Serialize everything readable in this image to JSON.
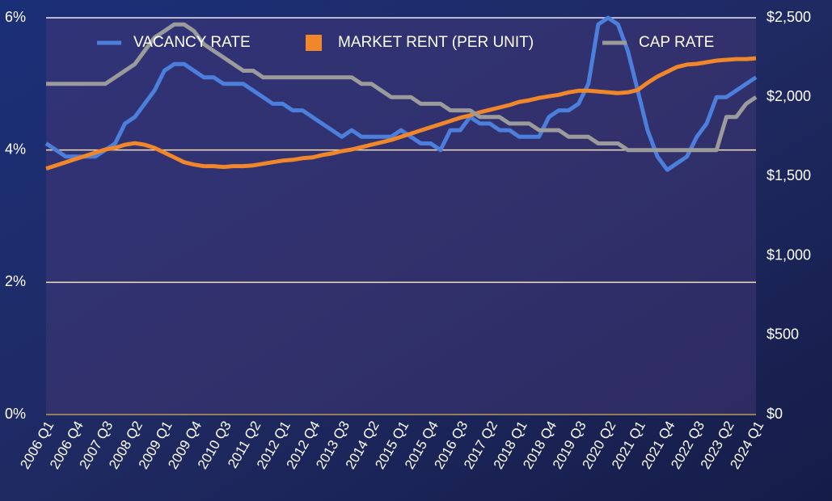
{
  "chart_data": {
    "type": "line",
    "categories": [
      "2006 Q1",
      null,
      null,
      "2006 Q4",
      null,
      null,
      "2007 Q3",
      null,
      null,
      "2008 Q2",
      null,
      null,
      "2009 Q1",
      null,
      null,
      "2009 Q4",
      null,
      null,
      "2010 Q3",
      null,
      null,
      "2011 Q2",
      null,
      null,
      "2012 Q1",
      null,
      null,
      "2012 Q4",
      null,
      null,
      "2013 Q3",
      null,
      null,
      "2014 Q2",
      null,
      null,
      "2015 Q1",
      null,
      null,
      "2015 Q4",
      null,
      null,
      "2016 Q3",
      null,
      null,
      "2017 Q2",
      null,
      null,
      "2018 Q1",
      null,
      null,
      "2018 Q4",
      null,
      null,
      "2019 Q3",
      null,
      null,
      "2020 Q2",
      null,
      null,
      "2021 Q1",
      null,
      null,
      "2021 Q4",
      null,
      null,
      "2022 Q3",
      null,
      null,
      "2023 Q2",
      null,
      null,
      "2024 Q1"
    ],
    "series": [
      {
        "name": "VACANCY RATE",
        "color": "#4b7fdb",
        "axis": "y",
        "marker": "line",
        "values": [
          4.1,
          4.0,
          3.9,
          3.9,
          3.9,
          3.9,
          4.0,
          4.1,
          4.4,
          4.5,
          4.7,
          4.9,
          5.2,
          5.3,
          5.3,
          5.2,
          5.1,
          5.1,
          5.0,
          5.0,
          5.0,
          4.9,
          4.8,
          4.7,
          4.7,
          4.6,
          4.6,
          4.5,
          4.4,
          4.3,
          4.2,
          4.3,
          4.2,
          4.2,
          4.2,
          4.2,
          4.3,
          4.2,
          4.1,
          4.1,
          4.0,
          4.3,
          4.3,
          4.5,
          4.4,
          4.4,
          4.3,
          4.3,
          4.2,
          4.2,
          4.2,
          4.5,
          4.6,
          4.6,
          4.7,
          5.0,
          5.9,
          6.0,
          5.9,
          5.5,
          4.9,
          4.3,
          3.9,
          3.7,
          3.8,
          3.9,
          4.2,
          4.4,
          4.8,
          4.8,
          4.9,
          5.0,
          5.1
        ]
      },
      {
        "name": "MARKET RENT (PER UNIT)",
        "color": "#f0872a",
        "axis": "y2",
        "marker": "square",
        "values": [
          1550,
          1570,
          1590,
          1610,
          1630,
          1650,
          1670,
          1680,
          1700,
          1710,
          1700,
          1680,
          1650,
          1620,
          1590,
          1575,
          1565,
          1565,
          1560,
          1565,
          1565,
          1570,
          1580,
          1590,
          1600,
          1605,
          1615,
          1620,
          1635,
          1645,
          1660,
          1670,
          1685,
          1700,
          1715,
          1730,
          1750,
          1770,
          1790,
          1810,
          1830,
          1850,
          1870,
          1885,
          1905,
          1920,
          1935,
          1950,
          1970,
          1980,
          1995,
          2005,
          2015,
          2030,
          2040,
          2040,
          2035,
          2030,
          2025,
          2030,
          2045,
          2090,
          2130,
          2160,
          2190,
          2205,
          2210,
          2220,
          2230,
          2235,
          2240,
          2240,
          2245
        ]
      },
      {
        "name": "CAP RATE",
        "color": "#9b9b9b",
        "axis": "y",
        "marker": "line",
        "values": [
          5.0,
          5.0,
          5.0,
          5.0,
          5.0,
          5.0,
          5.0,
          5.1,
          5.2,
          5.3,
          5.5,
          5.7,
          5.8,
          5.9,
          5.9,
          5.8,
          5.6,
          5.5,
          5.4,
          5.3,
          5.2,
          5.2,
          5.1,
          5.1,
          5.1,
          5.1,
          5.1,
          5.1,
          5.1,
          5.1,
          5.1,
          5.1,
          5.0,
          5.0,
          4.9,
          4.8,
          4.8,
          4.8,
          4.7,
          4.7,
          4.7,
          4.6,
          4.6,
          4.6,
          4.5,
          4.5,
          4.5,
          4.4,
          4.4,
          4.4,
          4.3,
          4.3,
          4.3,
          4.2,
          4.2,
          4.2,
          4.1,
          4.1,
          4.1,
          4.0,
          4.0,
          4.0,
          4.0,
          4.0,
          4.0,
          4.0,
          4.0,
          4.0,
          4.0,
          4.5,
          4.5,
          4.7,
          4.8
        ]
      }
    ],
    "ylim": [
      0,
      6
    ],
    "yticks": [
      {
        "value": 0,
        "label": "0%"
      },
      {
        "value": 2,
        "label": "2%"
      },
      {
        "value": 4,
        "label": "4%"
      },
      {
        "value": 6,
        "label": "6%"
      }
    ],
    "y2lim": [
      0,
      2500
    ],
    "y2ticks": [
      {
        "value": 0,
        "label": "$0"
      },
      {
        "value": 500,
        "label": "$500"
      },
      {
        "value": 1000,
        "label": "$1,000"
      },
      {
        "value": 1500,
        "label": "$1,500"
      },
      {
        "value": 2000,
        "label": "$2,000"
      },
      {
        "value": 2500,
        "label": "$2,500"
      }
    ],
    "grid": true,
    "legend": "top"
  }
}
